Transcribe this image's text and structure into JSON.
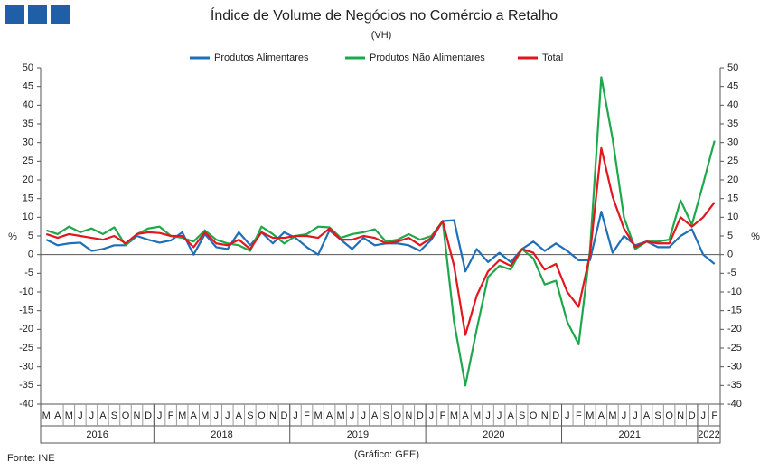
{
  "chart_data": {
    "type": "line",
    "title": "Índice de Volume de Negócios no Comércio a Retalho",
    "subtitle": "(VH)",
    "y_label": "%",
    "y2_label": "%",
    "source": "Fonte: INE",
    "credit": "(Gráfico: GEE)",
    "categories": [
      "M",
      "A",
      "M",
      "J",
      "J",
      "A",
      "S",
      "O",
      "N",
      "D",
      "J",
      "F",
      "M",
      "A",
      "M",
      "J",
      "J",
      "A",
      "S",
      "O",
      "N",
      "D",
      "J",
      "F",
      "M",
      "A",
      "M",
      "J",
      "J",
      "A",
      "S",
      "O",
      "N",
      "D",
      "J",
      "F",
      "M",
      "A",
      "M",
      "J",
      "J",
      "A",
      "S",
      "O",
      "N",
      "D",
      "J",
      "F",
      "M",
      "A",
      "M",
      "J",
      "J",
      "A",
      "S",
      "O",
      "N",
      "D",
      "J",
      "F"
    ],
    "year_groups": [
      {
        "label": "2016",
        "months": 10
      },
      {
        "label": "2018",
        "months": 12
      },
      {
        "label": "2019",
        "months": 12
      },
      {
        "label": "2020",
        "months": 12
      },
      {
        "label": "2021",
        "months": 12
      },
      {
        "label": "2022",
        "months": 2
      }
    ],
    "ylim": [
      -40,
      50
    ],
    "yticks": [
      -40,
      -35,
      -30,
      -25,
      -20,
      -15,
      -10,
      -5,
      0,
      5,
      10,
      15,
      20,
      25,
      30,
      35,
      40,
      45,
      50
    ],
    "y2lim": [
      -40,
      50
    ],
    "y2ticks": [
      -40,
      -35,
      -30,
      -25,
      -20,
      -15,
      -10,
      -5,
      0,
      5,
      10,
      15,
      20,
      25,
      30,
      35,
      40,
      45,
      50
    ],
    "grid": false,
    "legend": "top",
    "series": [
      {
        "name": "Produtos Alimentares",
        "color": "#1f6fb8",
        "values": [
          4,
          2.5,
          3,
          3.2,
          1,
          1.5,
          2.5,
          2.5,
          5,
          4,
          3.2,
          3.8,
          6,
          0,
          5.5,
          2,
          1.5,
          6,
          2.5,
          6,
          3,
          6,
          4.5,
          2,
          0,
          6.5,
          4,
          1.5,
          4.5,
          2.5,
          3,
          3,
          2.5,
          1,
          4,
          9,
          9.2,
          -4.5,
          1.5,
          -2,
          0.5,
          -2,
          1.5,
          3.5,
          1,
          3,
          1,
          -1.5,
          -1.5,
          11.5,
          0.5,
          5,
          2.5,
          3.5,
          2,
          2,
          5,
          6.8,
          0,
          -2.5
        ]
      },
      {
        "name": "Produtos Não Alimentares",
        "color": "#1ea84b",
        "values": [
          6.5,
          5.5,
          7.5,
          6,
          7,
          5.5,
          7.3,
          2.5,
          5.5,
          7,
          7.5,
          5,
          4.5,
          3.5,
          6.5,
          4,
          3,
          2.5,
          1,
          7.5,
          5.5,
          3,
          5,
          5.5,
          7.5,
          7.3,
          4.5,
          5.5,
          6,
          6.8,
          3.5,
          4,
          5.5,
          4,
          5,
          9,
          -18,
          -35,
          -20,
          -6,
          -3,
          -4,
          1.5,
          -1,
          -8,
          -7,
          -18,
          -24,
          1,
          47.5,
          31,
          10,
          1.5,
          3.5,
          3.5,
          4,
          14.5,
          8,
          19,
          30.5
        ]
      },
      {
        "name": "Total",
        "color": "#e3161e",
        "values": [
          5.5,
          4.5,
          5.5,
          5,
          4.5,
          4,
          5,
          3,
          5.5,
          6,
          5.8,
          5,
          5,
          2,
          6,
          3,
          2.5,
          4,
          1.5,
          6,
          4.5,
          4.5,
          5,
          5,
          4.5,
          7,
          4,
          4,
          5,
          4.5,
          3,
          3.5,
          4.5,
          2.5,
          4.5,
          9,
          -3,
          -21.5,
          -11,
          -4.5,
          -1.5,
          -3,
          1.5,
          0.5,
          -4,
          -2.5,
          -10,
          -14,
          0,
          28.5,
          15.5,
          7,
          2,
          3.5,
          3,
          3,
          10,
          7.5,
          10,
          14
        ]
      }
    ]
  }
}
